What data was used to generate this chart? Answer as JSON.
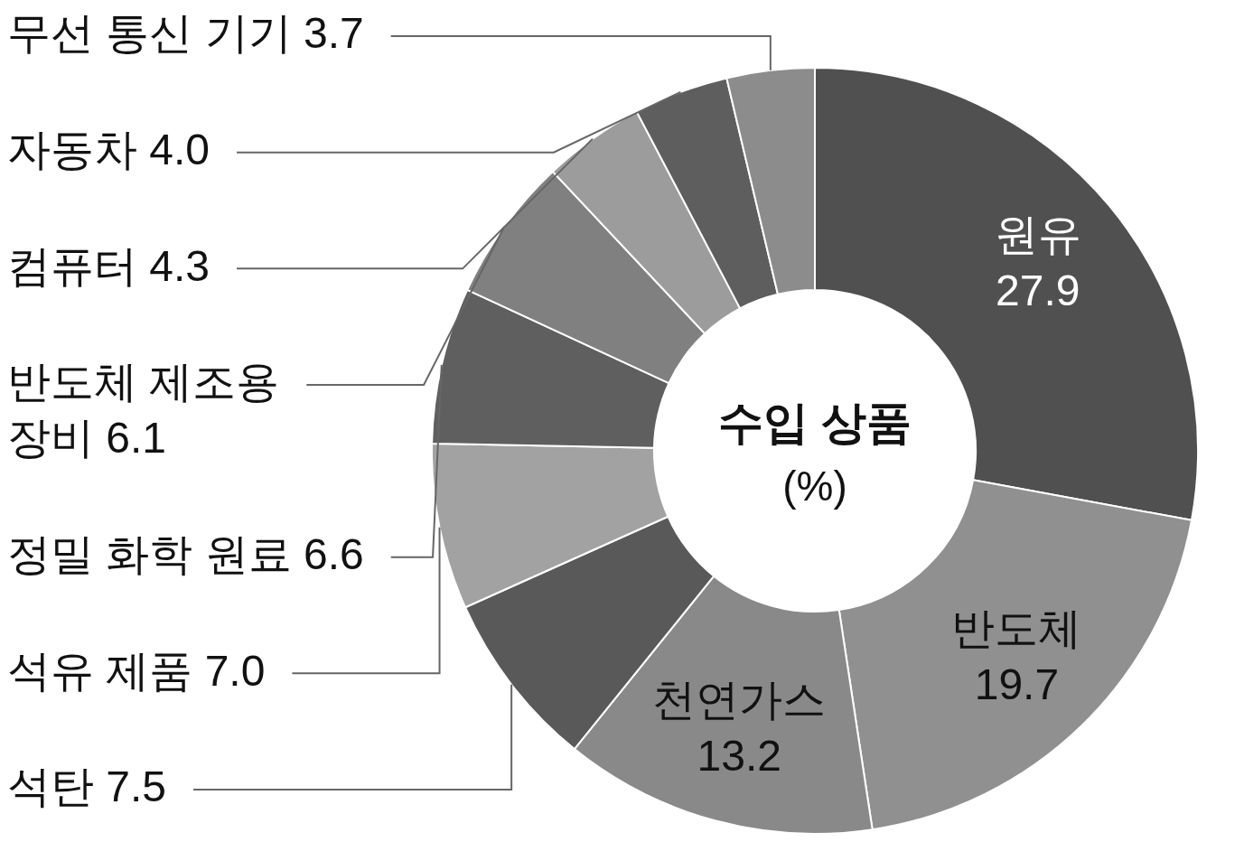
{
  "chart_data": {
    "type": "donut",
    "title": "수입 상품",
    "subtitle": "(%)",
    "categories": [
      "원유",
      "반도체",
      "천연가스",
      "석탄",
      "석유 제품",
      "정밀 화학 원료",
      "반도체 제조용 장비",
      "컴퓨터",
      "자동차",
      "무선 통신 기기"
    ],
    "values": [
      27.9,
      19.7,
      13.2,
      7.5,
      7.0,
      6.6,
      6.1,
      4.3,
      4.0,
      3.7
    ],
    "value_labels": [
      "27.9",
      "19.7",
      "13.2",
      "7.5",
      "7.0",
      "6.6",
      "6.1",
      "4.3",
      "4.0",
      "3.7"
    ],
    "colors": [
      "#505050",
      "#909090",
      "#898989",
      "#595959",
      "#a2a2a2",
      "#5f5f5f",
      "#808080",
      "#9c9c9c",
      "#5e5e5e",
      "#8c8c8c"
    ],
    "legend": false
  }
}
